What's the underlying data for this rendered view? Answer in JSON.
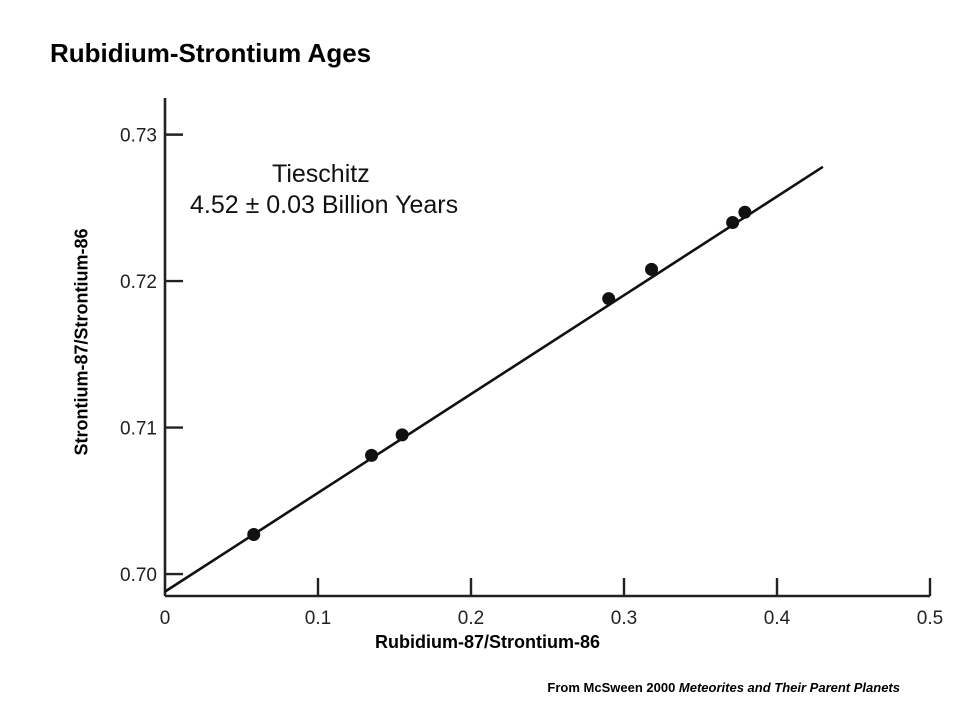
{
  "page": {
    "title": "Rubidium-Strontium Ages",
    "credit_prefix": "From McSween 2000 ",
    "credit_source": "Meteorites and Their Parent Planets"
  },
  "chart_data": {
    "type": "scatter",
    "title": "",
    "xlabel": "Rubidium-87/Strontium-86",
    "ylabel": "Strontium-87/Strontium-86",
    "xlim": [
      0,
      0.5
    ],
    "ylim": [
      0.6985,
      0.7325
    ],
    "xticks": [
      0,
      0.1,
      0.2,
      0.3,
      0.4,
      0.5
    ],
    "xtick_labels": [
      "0",
      "0.1",
      "0.2",
      "0.3",
      "0.4",
      "0.5"
    ],
    "yticks": [
      0.7,
      0.71,
      0.72,
      0.73
    ],
    "ytick_labels": [
      "0.70",
      "0.71",
      "0.72",
      "0.73"
    ],
    "grid": false,
    "series": [
      {
        "points": [
          {
            "x": 0.058,
            "y": 0.7027
          },
          {
            "x": 0.135,
            "y": 0.7081
          },
          {
            "x": 0.155,
            "y": 0.7095
          },
          {
            "x": 0.29,
            "y": 0.7188
          },
          {
            "x": 0.318,
            "y": 0.7208
          },
          {
            "x": 0.371,
            "y": 0.724
          },
          {
            "x": 0.379,
            "y": 0.7247
          }
        ]
      }
    ],
    "fit_line": {
      "x0": 0.0,
      "y0": 0.6988,
      "x1": 0.43,
      "y1": 0.7278
    },
    "annotation": {
      "line1": "Tieschitz",
      "line2": "4.52 ± 0.03 Billion Years"
    },
    "colors": {
      "ink": "#111111",
      "axis": "#222222"
    }
  }
}
